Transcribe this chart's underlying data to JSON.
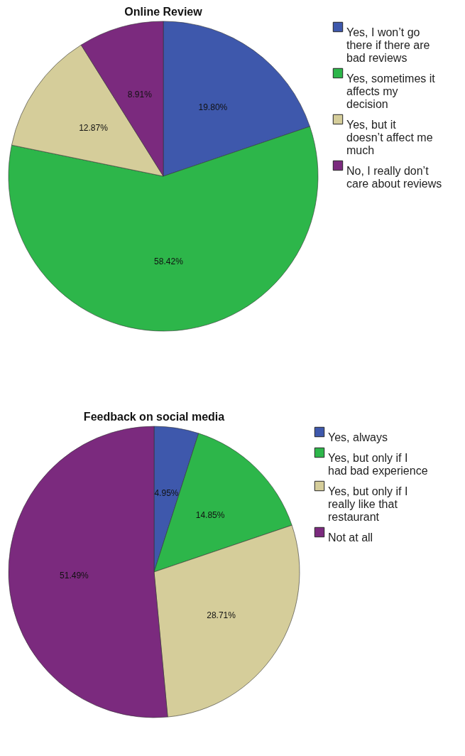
{
  "chart_data": [
    {
      "type": "pie",
      "title": "Online Review",
      "categories": [
        "Yes, I won’t go there if there are bad reviews",
        "Yes, sometimes it affects my decision",
        "Yes, but it doesn’t affect me much",
        "No, I really don’t care about reviews"
      ],
      "values": [
        19.8,
        58.42,
        12.87,
        8.91
      ],
      "colors": [
        "#3e58ac",
        "#2db64a",
        "#d5cd9a",
        "#7b2a7e"
      ],
      "value_labels": [
        "19.80%",
        "58.42%",
        "12.87%",
        "8.91%"
      ],
      "legend": "right"
    },
    {
      "type": "pie",
      "title": "Feedback on social media",
      "categories": [
        "Yes, always",
        "Yes, but only if I had bad experience",
        "Yes, but only if I really like that restaurant",
        "Not at all"
      ],
      "values": [
        4.95,
        14.85,
        28.71,
        51.49
      ],
      "colors": [
        "#3e58ac",
        "#2db64a",
        "#d5cd9a",
        "#7b2a7e"
      ],
      "value_labels": [
        "4.95%",
        "14.85%",
        "28.71%",
        "51.49%"
      ],
      "legend": "right"
    }
  ]
}
